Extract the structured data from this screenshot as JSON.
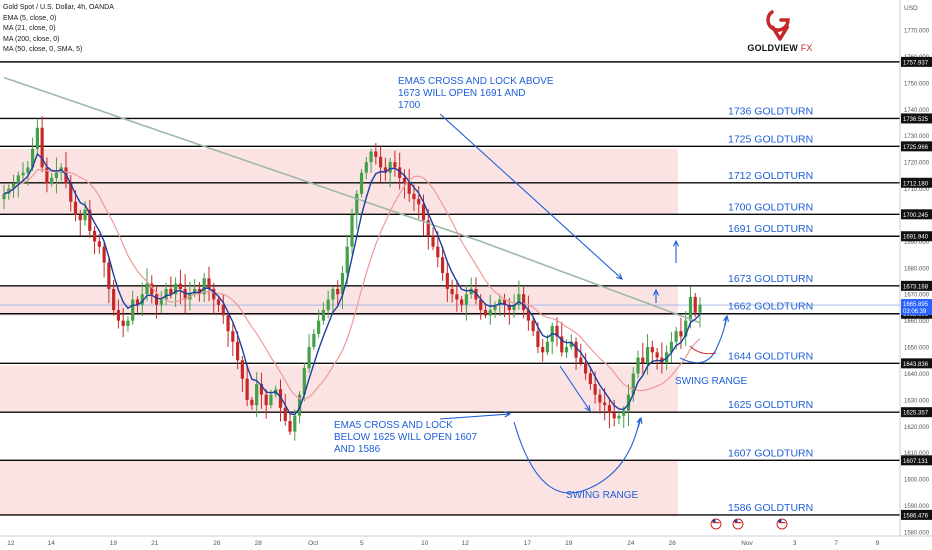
{
  "header": {
    "symbol_line": "Gold Spot / U.S. Dollar, 4h, OANDA",
    "indicators": [
      "EMA (5, close, 0)",
      "MA (21, close, 0)",
      "MA (200, close, 0)",
      "MA (50, close, 0, SMA, 5)"
    ]
  },
  "brand": {
    "name": "GOLDVIEW",
    "suffix": " FX",
    "colors": {
      "red": "#c62828",
      "dark": "#111111"
    }
  },
  "chart_data": {
    "type": "candlestick",
    "ylim": [
      1580,
      1780
    ],
    "currency": "USD",
    "y_ticks": [
      "1770.000",
      "1760.000",
      "1750.000",
      "1740.000",
      "1730.000",
      "1720.000",
      "1710.000",
      "1700.000",
      "1690.000",
      "1680.000",
      "1670.000",
      "1660.000",
      "1650.000",
      "1640.000",
      "1630.000",
      "1620.000",
      "1610.000",
      "1600.000",
      "1590.000",
      "1580.000"
    ],
    "x_ticks": [
      {
        "label": "12",
        "pos": 0.012
      },
      {
        "label": "14",
        "pos": 0.057
      },
      {
        "label": "19",
        "pos": 0.126
      },
      {
        "label": "21",
        "pos": 0.172
      },
      {
        "label": "26",
        "pos": 0.241
      },
      {
        "label": "28",
        "pos": 0.287
      },
      {
        "label": "Oct",
        "pos": 0.348
      },
      {
        "label": "5",
        "pos": 0.402
      },
      {
        "label": "10",
        "pos": 0.472
      },
      {
        "label": "12",
        "pos": 0.517
      },
      {
        "label": "17",
        "pos": 0.586
      },
      {
        "label": "19",
        "pos": 0.632
      },
      {
        "label": "24",
        "pos": 0.701
      },
      {
        "label": "26",
        "pos": 0.747
      },
      {
        "label": "Nov",
        "pos": 0.83
      },
      {
        "label": "3",
        "pos": 0.883
      },
      {
        "label": "7",
        "pos": 0.929
      },
      {
        "label": "9",
        "pos": 0.975
      }
    ],
    "levels": [
      {
        "price": 1757.937,
        "label": "1757.937",
        "name": ""
      },
      {
        "price": 1736.525,
        "label": "1736.525",
        "name": "1736 GOLDTURN"
      },
      {
        "price": 1725.966,
        "label": "1725.966",
        "name": "1725 GOLDTURN"
      },
      {
        "price": 1712.18,
        "label": "1712.180",
        "name": "1712 GOLDTURN"
      },
      {
        "price": 1700.245,
        "label": "1700.245",
        "name": "1700 GOLDTURN"
      },
      {
        "price": 1691.94,
        "label": "1691.940",
        "name": "1691 GOLDTURN"
      },
      {
        "price": 1673.168,
        "label": "1673.168",
        "name": "1673 GOLDTURN"
      },
      {
        "price": 1662.608,
        "label": "1662.608",
        "name": "1662 GOLDTURN"
      },
      {
        "price": 1643.836,
        "label": "1643.836",
        "name": "1644 GOLDTURN"
      },
      {
        "price": 1625.357,
        "label": "1625.357",
        "name": "1625 GOLDTURN"
      },
      {
        "price": 1607.131,
        "label": "1607.131",
        "name": "1607 GOLDTURN"
      },
      {
        "price": 1586.476,
        "label": "1586.476",
        "name": "1586 GOLDTURN"
      }
    ],
    "current_price": {
      "price": 1665.895,
      "label": "1665.895",
      "countdown": "03:06:39"
    },
    "zones": [
      [
        1700,
        1725
      ],
      [
        1662,
        1673
      ],
      [
        1625,
        1643
      ],
      [
        1586,
        1607
      ]
    ],
    "annotations": {
      "ema_above": [
        "EMA5 CROSS AND LOCK ABOVE",
        "1673 WILL OPEN 1691 AND",
        "1700"
      ],
      "ema_below": [
        "EMA5 CROSS AND LOCK",
        "BELOW 1625 WILL OPEN 1607",
        "AND 1586"
      ],
      "swing_range_1": "SWING RANGE",
      "swing_range_2": "SWING RANGE"
    },
    "colors": {
      "up": "#43a047",
      "down": "#c62828",
      "ema5": "#e53935",
      "ma21": "#1a3fa0",
      "ma200": "#9fb8a8",
      "ma50": "#ef9a9a",
      "annotation": "#1e5fd8",
      "zone": "#fbe3e4"
    },
    "closes": [
      1708,
      1710,
      1712,
      1715,
      1716,
      1718,
      1725,
      1733,
      1718,
      1712,
      1714,
      1716,
      1718,
      1712,
      1705,
      1700,
      1698,
      1702,
      1694,
      1690,
      1688,
      1682,
      1672,
      1664,
      1660,
      1658,
      1660,
      1668,
      1666,
      1670,
      1674,
      1670,
      1666,
      1668,
      1672,
      1670,
      1674,
      1672,
      1668,
      1670,
      1672,
      1670,
      1676,
      1672,
      1668,
      1666,
      1662,
      1656,
      1652,
      1645,
      1638,
      1630,
      1628,
      1636,
      1632,
      1628,
      1632,
      1634,
      1627,
      1622,
      1618,
      1624,
      1632,
      1642,
      1650,
      1655,
      1660,
      1664,
      1668,
      1672,
      1670,
      1678,
      1688,
      1700,
      1708,
      1716,
      1720,
      1724,
      1722,
      1718,
      1716,
      1720,
      1718,
      1714,
      1712,
      1708,
      1706,
      1704,
      1698,
      1692,
      1688,
      1684,
      1678,
      1672,
      1670,
      1668,
      1666,
      1670,
      1672,
      1668,
      1664,
      1662,
      1664,
      1666,
      1668,
      1666,
      1664,
      1666,
      1670,
      1664,
      1660,
      1656,
      1650,
      1648,
      1652,
      1658,
      1654,
      1648,
      1650,
      1652,
      1646,
      1644,
      1640,
      1636,
      1632,
      1629,
      1628,
      1625,
      1623,
      1624,
      1626,
      1632,
      1640,
      1646,
      1644,
      1650,
      1648,
      1646,
      1644,
      1648,
      1652,
      1656,
      1654,
      1660,
      1669,
      1663,
      1666
    ],
    "time_range": "Sep 12 – Oct 27 (4h)"
  },
  "scale_label": "USD"
}
